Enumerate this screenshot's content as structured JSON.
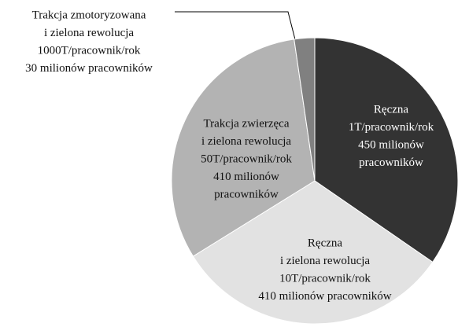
{
  "chart_data": {
    "type": "pie",
    "categories": [
      [
        "Ręczna",
        "1T/pracownik/rok",
        "450 milionów",
        "pracowników"
      ],
      [
        "Ręczna",
        "i zielona rewolucja",
        "10T/pracownik/rok",
        "410 milionów pracowników"
      ],
      [
        "Trakcja zwierzęca",
        "i zielona rewolucja",
        "50T/pracownik/rok",
        "410 milionów",
        "pracowników"
      ],
      [
        "Trakcja zmotoryzowana",
        "i zielona rewolucja",
        "1000T/pracownik/rok",
        "30 milionów pracowników"
      ]
    ],
    "values": [
      450,
      410,
      410,
      30
    ],
    "colors": [
      "#333333",
      "#e2e2e2",
      "#b3b3b3",
      "#808080"
    ],
    "label_colors": [
      "#ffffff",
      "#111111",
      "#111111",
      "#111111"
    ]
  }
}
